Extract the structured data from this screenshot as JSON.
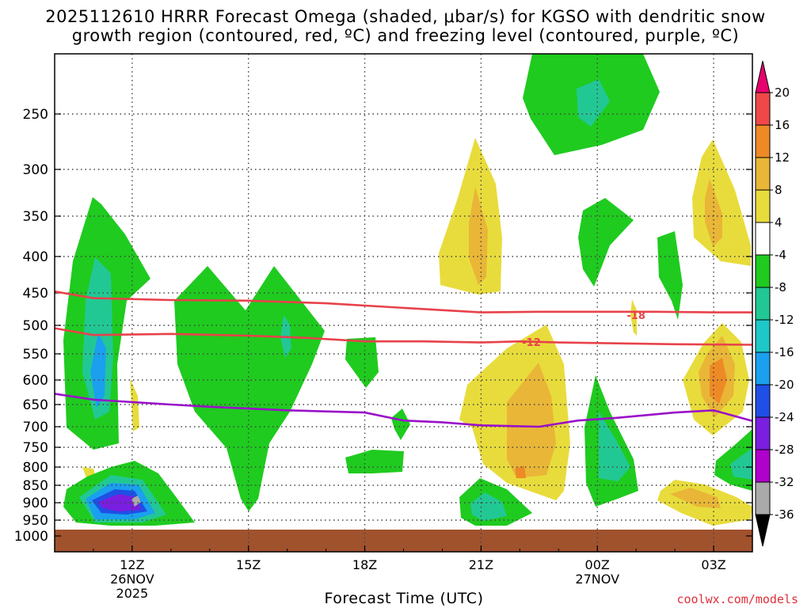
{
  "title_line1": "2025112610 HRRR Forecast Omega (shaded, μbar/s) for KGSO with dendritic snow",
  "title_line2": "growth region (contoured, red, ºC) and freezing level (contoured, purple, ºC)",
  "xlabel": "Forecast Time (UTC)",
  "credit": "coolwx.com/models",
  "chart_data": {
    "type": "heatmap",
    "title": "2025112610 HRRR Forecast Omega (shaded, μbar/s) for KGSO with dendritic snow growth region (contoured, red, ºC) and freezing level (contoured, purple, ºC)",
    "xlabel": "Forecast Time (UTC)",
    "x_ticks": [
      {
        "hour": 12,
        "label": "12Z",
        "sub1": "26NOV",
        "sub2": "2025"
      },
      {
        "hour": 15,
        "label": "15Z",
        "sub1": "",
        "sub2": ""
      },
      {
        "hour": 18,
        "label": "18Z",
        "sub1": "",
        "sub2": ""
      },
      {
        "hour": 21,
        "label": "21Z",
        "sub1": "",
        "sub2": ""
      },
      {
        "hour": 24,
        "label": "00Z",
        "sub1": "27NOV",
        "sub2": ""
      },
      {
        "hour": 27,
        "label": "03Z",
        "sub1": "",
        "sub2": ""
      }
    ],
    "xlim_hours": [
      10,
      28
    ],
    "y_ticks": [
      250,
      300,
      350,
      400,
      450,
      500,
      550,
      600,
      650,
      700,
      750,
      800,
      850,
      900,
      950,
      1000
    ],
    "ylim_mb": [
      200,
      1000
    ],
    "grid": true,
    "colorbar": {
      "levels": [
        "20",
        "16",
        "12",
        "8",
        "4",
        "-4",
        "-8",
        "-12",
        "-16",
        "-20",
        "-24",
        "-28",
        "-32",
        "-36"
      ],
      "colors": [
        "#e8006e",
        "#f04848",
        "#ee8a26",
        "#e9b637",
        "#e8dc3c",
        "#ffffff",
        "#1fcb1f",
        "#22c894",
        "#1ec8c8",
        "#1aa0ee",
        "#1f4fe6",
        "#7a1ee0",
        "#b000cc",
        "#aaaaaa",
        "#000000"
      ]
    },
    "contours": [
      {
        "name": "-18",
        "color": "#e8424a",
        "points": [
          [
            10.0,
            448
          ],
          [
            11.0,
            458
          ],
          [
            13.0,
            461
          ],
          [
            15.0,
            462
          ],
          [
            17.0,
            466
          ],
          [
            19.0,
            473
          ],
          [
            21.0,
            480
          ],
          [
            22.5,
            479
          ],
          [
            24.0,
            479
          ],
          [
            25.5,
            479
          ],
          [
            27.0,
            480
          ],
          [
            28.0,
            480
          ]
        ],
        "label_hour": 25.0,
        "label_mb": 484
      },
      {
        "name": "-12",
        "color": "#e8424a",
        "points": [
          [
            10.0,
            505
          ],
          [
            11.0,
            517
          ],
          [
            13.0,
            515
          ],
          [
            15.0,
            518
          ],
          [
            16.5,
            522
          ],
          [
            18.0,
            528
          ],
          [
            19.5,
            528
          ],
          [
            21.0,
            530
          ],
          [
            22.0,
            528
          ],
          [
            23.0,
            530
          ],
          [
            24.0,
            531
          ],
          [
            26.0,
            533
          ],
          [
            28.0,
            534
          ]
        ],
        "label_hour": 22.3,
        "label_mb": 529
      },
      {
        "name": "0",
        "color": "#9a10c8",
        "points": [
          [
            10.0,
            628
          ],
          [
            11.0,
            640
          ],
          [
            13.0,
            650
          ],
          [
            14.0,
            655
          ],
          [
            16.0,
            663
          ],
          [
            18.0,
            668
          ],
          [
            19.0,
            686
          ],
          [
            20.0,
            690
          ],
          [
            21.0,
            697
          ],
          [
            22.5,
            700
          ],
          [
            23.5,
            686
          ],
          [
            24.5,
            680
          ],
          [
            26.0,
            668
          ],
          [
            27.0,
            663
          ],
          [
            28.0,
            687
          ]
        ]
      }
    ],
    "omega_regions": [
      {
        "value": "-8 to -4",
        "desc": "green, 11-12Z 330-750mb"
      },
      {
        "value": "-24 to -32",
        "desc": "purple core near 12Z 900mb"
      },
      {
        "value": "4 to 12",
        "desc": "yellow/orange band 21-23Z"
      },
      {
        "value": "4 to 12",
        "desc": "yellow/orange near 03Z"
      }
    ]
  }
}
